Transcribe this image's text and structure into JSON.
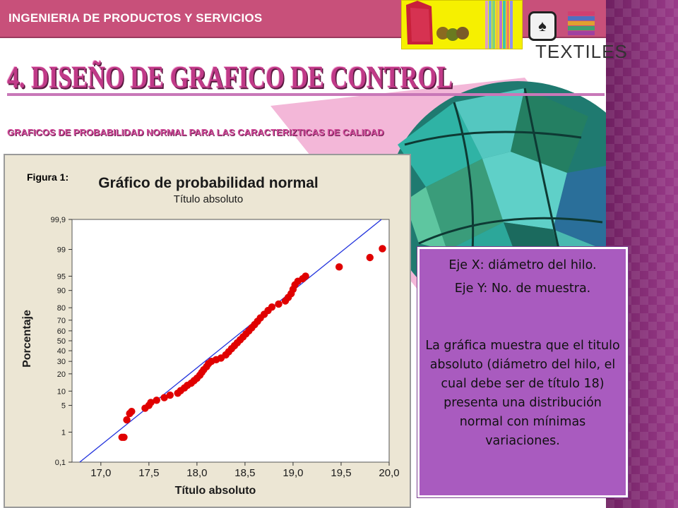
{
  "header": {
    "title": "INGENIERIA DE PRODUCTOS Y SERVICIOS",
    "bar_color": "#c8507a"
  },
  "logo": {
    "text": "TEXTILES",
    "icon": "spade-icon"
  },
  "slide": {
    "title": "4. DISEÑO DE GRAFICO DE CONTROL",
    "subtitle": "GRAFICOS DE PROBABILIDAD NORMAL PARA LAS CARACTERIZTICAS DE CALIDAD",
    "title_color": "#c03a88"
  },
  "figure": {
    "label": "Figura 1:"
  },
  "chart_data": {
    "type": "scatter",
    "title": "Gráfico de probabilidad normal",
    "subtitle": "Título absoluto",
    "xlabel": "Título absoluto",
    "ylabel": "Porcentaje",
    "xlim": [
      16.7,
      20.0
    ],
    "x_ticks": [
      "17,0",
      "17,5",
      "18,0",
      "18,5",
      "19,0",
      "19,5",
      "20,0"
    ],
    "y_ticks": [
      "0,1",
      "1",
      "5",
      "10",
      "20",
      "30",
      "40",
      "50",
      "60",
      "70",
      "80",
      "90",
      "95",
      "99",
      "99,9"
    ],
    "y_scale": "normal-probability",
    "grid": true,
    "point_color": "#e00000",
    "line_color": "#2233dd",
    "reference_line": {
      "x": [
        16.78,
        19.92
      ],
      "y": [
        0.1,
        99.9
      ]
    },
    "points": [
      {
        "x": 17.22,
        "y": 0.7
      },
      {
        "x": 17.24,
        "y": 0.7
      },
      {
        "x": 17.27,
        "y": 2.2
      },
      {
        "x": 17.3,
        "y": 3.2
      },
      {
        "x": 17.32,
        "y": 3.6
      },
      {
        "x": 17.46,
        "y": 4.3
      },
      {
        "x": 17.5,
        "y": 5.0
      },
      {
        "x": 17.52,
        "y": 5.8
      },
      {
        "x": 17.58,
        "y": 6.5
      },
      {
        "x": 17.66,
        "y": 7.4
      },
      {
        "x": 17.72,
        "y": 8.3
      },
      {
        "x": 17.8,
        "y": 9.1
      },
      {
        "x": 17.83,
        "y": 10.2
      },
      {
        "x": 17.87,
        "y": 11.5
      },
      {
        "x": 17.9,
        "y": 12.8
      },
      {
        "x": 17.94,
        "y": 14.0
      },
      {
        "x": 17.97,
        "y": 15.5
      },
      {
        "x": 18.0,
        "y": 17.0
      },
      {
        "x": 18.03,
        "y": 19.0
      },
      {
        "x": 18.05,
        "y": 21.0
      },
      {
        "x": 18.07,
        "y": 23.0
      },
      {
        "x": 18.1,
        "y": 25.5
      },
      {
        "x": 18.12,
        "y": 28.0
      },
      {
        "x": 18.15,
        "y": 30.0
      },
      {
        "x": 18.2,
        "y": 31.5
      },
      {
        "x": 18.25,
        "y": 33.0
      },
      {
        "x": 18.3,
        "y": 36.0
      },
      {
        "x": 18.33,
        "y": 39.0
      },
      {
        "x": 18.36,
        "y": 42.0
      },
      {
        "x": 18.39,
        "y": 45.0
      },
      {
        "x": 18.42,
        "y": 48.0
      },
      {
        "x": 18.45,
        "y": 51.0
      },
      {
        "x": 18.48,
        "y": 54.0
      },
      {
        "x": 18.51,
        "y": 57.0
      },
      {
        "x": 18.54,
        "y": 60.0
      },
      {
        "x": 18.57,
        "y": 63.0
      },
      {
        "x": 18.6,
        "y": 66.0
      },
      {
        "x": 18.63,
        "y": 69.0
      },
      {
        "x": 18.66,
        "y": 72.0
      },
      {
        "x": 18.7,
        "y": 75.0
      },
      {
        "x": 18.74,
        "y": 78.0
      },
      {
        "x": 18.78,
        "y": 80.5
      },
      {
        "x": 18.85,
        "y": 82.5
      },
      {
        "x": 18.92,
        "y": 84.5
      },
      {
        "x": 18.95,
        "y": 86.5
      },
      {
        "x": 18.98,
        "y": 88.5
      },
      {
        "x": 19.0,
        "y": 90.5
      },
      {
        "x": 19.02,
        "y": 92.3
      },
      {
        "x": 19.05,
        "y": 93.5
      },
      {
        "x": 19.1,
        "y": 94.3
      },
      {
        "x": 19.13,
        "y": 95.0
      },
      {
        "x": 19.48,
        "y": 97.0
      },
      {
        "x": 19.8,
        "y": 98.3
      },
      {
        "x": 19.93,
        "y": 99.05
      }
    ]
  },
  "info_box": {
    "line1": "Eje X: diámetro del hilo.",
    "line2": "Eje Y: No. de muestra.",
    "paragraph": "La gráfica muestra que el titulo absoluto (diámetro del hilo, el cual debe ser de título 18) presenta una distribución normal con mínimas variaciones.",
    "bg_color": "#a95bbf"
  }
}
